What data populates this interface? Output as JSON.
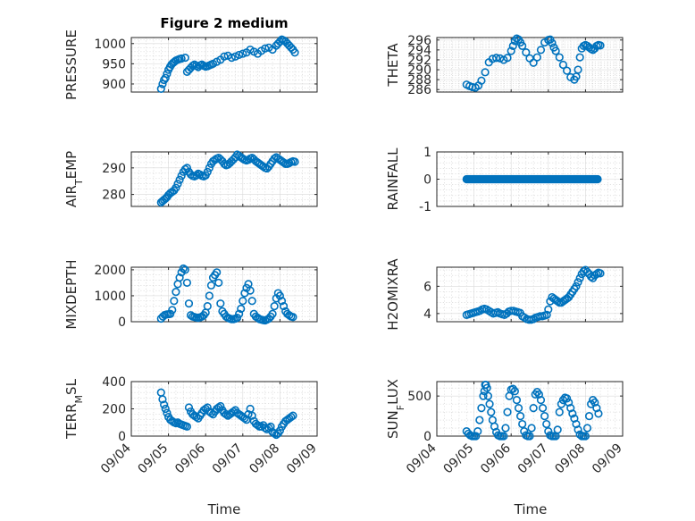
{
  "figure": {
    "title": "Figure 2 medium",
    "marker_color": "#0072BD",
    "xlabel": "Time",
    "date_ticks": [
      "09/04",
      "09/05",
      "09/06",
      "09/07",
      "09/08",
      "09/09"
    ]
  },
  "chart_data": [
    {
      "type": "scatter",
      "ylabel": "PRESSURE",
      "xlim": [
        0,
        5
      ],
      "ylim": [
        880,
        1015
      ],
      "yticks": [
        900,
        950,
        1000
      ],
      "yticklabels": [
        "900",
        "950",
        "1000"
      ],
      "x": [
        0.8,
        0.84,
        0.88,
        0.92,
        0.96,
        1.0,
        1.04,
        1.08,
        1.12,
        1.16,
        1.2,
        1.25,
        1.3,
        1.35,
        1.45,
        1.5,
        1.55,
        1.6,
        1.65,
        1.7,
        1.75,
        1.8,
        1.85,
        1.9,
        1.95,
        2.0,
        2.05,
        2.1,
        2.15,
        2.2,
        2.3,
        2.4,
        2.5,
        2.6,
        2.7,
        2.8,
        2.9,
        3.0,
        3.1,
        3.2,
        3.3,
        3.4,
        3.5,
        3.6,
        3.7,
        3.8,
        3.9,
        3.95,
        4.0,
        4.05,
        4.1,
        4.15,
        4.2,
        4.25,
        4.3,
        4.35,
        4.4
      ],
      "y": [
        888,
        900,
        910,
        915,
        925,
        935,
        942,
        948,
        952,
        955,
        958,
        960,
        962,
        963,
        965,
        930,
        935,
        940,
        945,
        948,
        945,
        942,
        946,
        948,
        945,
        943,
        944,
        946,
        948,
        950,
        955,
        960,
        968,
        970,
        965,
        968,
        972,
        975,
        978,
        985,
        980,
        975,
        982,
        988,
        990,
        985,
        995,
        1000,
        1005,
        1010,
        1008,
        1005,
        1000,
        995,
        990,
        985,
        978
      ]
    },
    {
      "type": "scatter",
      "ylabel": "THETA",
      "xlim": [
        0,
        5
      ],
      "ylim": [
        285.5,
        296.5
      ],
      "yticks": [
        286,
        288,
        290,
        292,
        294,
        296
      ],
      "yticklabels": [
        "286",
        "288",
        "290",
        "292",
        "294",
        "296"
      ],
      "x": [
        0.8,
        0.88,
        0.96,
        1.04,
        1.12,
        1.2,
        1.3,
        1.4,
        1.5,
        1.6,
        1.7,
        1.8,
        1.9,
        2.0,
        2.05,
        2.1,
        2.15,
        2.2,
        2.25,
        2.3,
        2.4,
        2.5,
        2.6,
        2.7,
        2.8,
        2.9,
        3.0,
        3.05,
        3.1,
        3.15,
        3.2,
        3.3,
        3.4,
        3.5,
        3.6,
        3.7,
        3.75,
        3.8,
        3.85,
        3.9,
        3.95,
        4.0,
        4.05,
        4.1,
        4.15,
        4.2,
        4.25,
        4.3,
        4.35,
        4.4
      ],
      "y": [
        287.0,
        286.7,
        286.5,
        286.4,
        286.8,
        287.8,
        289.5,
        291.5,
        292.2,
        292.4,
        292.3,
        292.0,
        292.4,
        293.8,
        294.8,
        295.8,
        296.3,
        296.1,
        295.5,
        294.8,
        293.5,
        292.3,
        291.4,
        292.5,
        294.0,
        295.5,
        296.0,
        296.1,
        295.4,
        294.5,
        293.8,
        292.5,
        291.0,
        289.8,
        288.5,
        288.0,
        288.6,
        290.0,
        292.5,
        294.3,
        294.8,
        295.0,
        294.8,
        294.5,
        294.2,
        294.0,
        294.3,
        294.8,
        295.0,
        294.9
      ]
    },
    {
      "type": "scatter",
      "ylabel": "AIR_TEMP",
      "xlim": [
        0,
        5
      ],
      "ylim": [
        275.5,
        296
      ],
      "yticks": [
        280,
        290
      ],
      "yticklabels": [
        "280",
        "290"
      ],
      "x": [
        0.8,
        0.84,
        0.88,
        0.92,
        0.96,
        1.0,
        1.05,
        1.1,
        1.15,
        1.2,
        1.25,
        1.3,
        1.35,
        1.4,
        1.45,
        1.5,
        1.55,
        1.6,
        1.65,
        1.7,
        1.75,
        1.8,
        1.85,
        1.9,
        1.95,
        2.0,
        2.05,
        2.1,
        2.15,
        2.2,
        2.25,
        2.3,
        2.35,
        2.4,
        2.45,
        2.5,
        2.55,
        2.6,
        2.65,
        2.7,
        2.75,
        2.8,
        2.85,
        2.9,
        2.95,
        3.0,
        3.05,
        3.1,
        3.15,
        3.2,
        3.25,
        3.3,
        3.35,
        3.4,
        3.45,
        3.5,
        3.55,
        3.6,
        3.65,
        3.7,
        3.75,
        3.8,
        3.85,
        3.9,
        3.95,
        4.0,
        4.05,
        4.1,
        4.15,
        4.2,
        4.25,
        4.3,
        4.35,
        4.4
      ],
      "y": [
        277.0,
        277.5,
        278.0,
        278.5,
        279.0,
        279.8,
        280.5,
        281.0,
        281.5,
        282.5,
        284.0,
        285.5,
        287.0,
        288.5,
        289.5,
        290.0,
        288.5,
        287.5,
        287.0,
        286.8,
        287.2,
        287.8,
        287.5,
        287.0,
        286.8,
        287.2,
        288.5,
        290.0,
        291.5,
        292.5,
        293.0,
        293.5,
        293.8,
        293.2,
        292.5,
        291.5,
        291.0,
        291.2,
        291.8,
        292.5,
        293.2,
        294.0,
        295.0,
        294.5,
        294.0,
        293.5,
        293.0,
        292.8,
        293.0,
        293.5,
        293.8,
        293.2,
        292.5,
        292.0,
        291.5,
        291.0,
        290.5,
        290.0,
        289.8,
        290.5,
        291.5,
        292.5,
        293.5,
        294.0,
        293.5,
        293.0,
        292.5,
        292.0,
        291.5,
        291.5,
        291.8,
        292.2,
        292.5,
        292.3
      ]
    },
    {
      "type": "scatter",
      "ylabel": "RAINFALL",
      "xlim": [
        0,
        5
      ],
      "ylim": [
        -1,
        1
      ],
      "yticks": [
        -1,
        0,
        1
      ],
      "yticklabels": [
        "-1",
        "0",
        "1"
      ],
      "x_start": 0.8,
      "x_end": 4.35,
      "x_step": 0.028,
      "constant_value": 0
    },
    {
      "type": "scatter",
      "ylabel": "MIXDEPTH",
      "xlim": [
        0,
        5
      ],
      "ylim": [
        0,
        2100
      ],
      "yticks": [
        0,
        1000,
        2000
      ],
      "yticklabels": [
        "0",
        "1000",
        "2000"
      ],
      "x": [
        0.8,
        0.85,
        0.9,
        0.95,
        1.0,
        1.05,
        1.1,
        1.15,
        1.2,
        1.25,
        1.3,
        1.35,
        1.4,
        1.45,
        1.5,
        1.55,
        1.6,
        1.65,
        1.7,
        1.75,
        1.8,
        1.85,
        1.9,
        1.95,
        2.0,
        2.05,
        2.1,
        2.15,
        2.2,
        2.25,
        2.3,
        2.35,
        2.4,
        2.45,
        2.5,
        2.55,
        2.6,
        2.65,
        2.7,
        2.75,
        2.8,
        2.85,
        2.9,
        2.95,
        3.0,
        3.05,
        3.1,
        3.15,
        3.2,
        3.25,
        3.3,
        3.35,
        3.4,
        3.45,
        3.5,
        3.55,
        3.6,
        3.65,
        3.7,
        3.75,
        3.8,
        3.85,
        3.9,
        3.95,
        4.0,
        4.05,
        4.1,
        4.15,
        4.2,
        4.25,
        4.3,
        4.35
      ],
      "y": [
        120,
        200,
        260,
        280,
        290,
        300,
        450,
        800,
        1150,
        1450,
        1700,
        1900,
        2050,
        2000,
        1500,
        700,
        250,
        200,
        180,
        160,
        150,
        170,
        200,
        250,
        350,
        600,
        1000,
        1400,
        1700,
        1800,
        1900,
        1500,
        700,
        400,
        300,
        200,
        150,
        120,
        100,
        100,
        120,
        150,
        300,
        500,
        800,
        1100,
        1300,
        1450,
        1200,
        800,
        300,
        200,
        150,
        100,
        80,
        60,
        50,
        80,
        120,
        200,
        300,
        600,
        900,
        1100,
        1000,
        800,
        600,
        400,
        300,
        250,
        200,
        180
      ]
    },
    {
      "type": "scatter",
      "ylabel": "H2OMIXRA",
      "xlim": [
        0,
        5
      ],
      "ylim": [
        3.4,
        7.4
      ],
      "yticks": [
        4,
        6
      ],
      "yticklabels": [
        "4",
        "6"
      ],
      "x": [
        0.8,
        0.86,
        0.92,
        0.98,
        1.04,
        1.1,
        1.16,
        1.22,
        1.28,
        1.34,
        1.4,
        1.46,
        1.52,
        1.58,
        1.64,
        1.7,
        1.76,
        1.82,
        1.88,
        1.94,
        2.0,
        2.06,
        2.12,
        2.18,
        2.24,
        2.3,
        2.36,
        2.42,
        2.48,
        2.54,
        2.6,
        2.66,
        2.72,
        2.78,
        2.84,
        2.9,
        2.96,
        3.0,
        3.05,
        3.1,
        3.15,
        3.2,
        3.25,
        3.3,
        3.35,
        3.4,
        3.45,
        3.5,
        3.55,
        3.6,
        3.65,
        3.7,
        3.75,
        3.8,
        3.85,
        3.9,
        3.95,
        4.0,
        4.05,
        4.1,
        4.15,
        4.2,
        4.25,
        4.3,
        4.35,
        4.4
      ],
      "y": [
        3.9,
        3.95,
        4.0,
        4.05,
        4.1,
        4.15,
        4.2,
        4.3,
        4.35,
        4.3,
        4.2,
        4.1,
        4.0,
        4.05,
        4.1,
        4.0,
        3.95,
        3.9,
        4.0,
        4.15,
        4.2,
        4.2,
        4.15,
        4.1,
        4.05,
        3.8,
        3.7,
        3.6,
        3.55,
        3.55,
        3.6,
        3.7,
        3.75,
        3.8,
        3.8,
        3.85,
        3.9,
        4.3,
        4.9,
        5.2,
        5.1,
        5.0,
        4.9,
        4.8,
        4.8,
        4.9,
        5.0,
        5.1,
        5.2,
        5.4,
        5.6,
        5.8,
        6.0,
        6.3,
        6.6,
        6.9,
        7.1,
        7.2,
        7.05,
        6.9,
        6.7,
        6.6,
        6.8,
        6.9,
        7.0,
        6.95
      ]
    },
    {
      "type": "scatter",
      "ylabel": "TERR_MSL",
      "xlim": [
        0,
        5
      ],
      "ylim": [
        0,
        400
      ],
      "yticks": [
        0,
        200,
        400
      ],
      "yticklabels": [
        "0",
        "200",
        "400"
      ],
      "x": [
        0.8,
        0.84,
        0.88,
        0.92,
        0.96,
        1.0,
        1.05,
        1.1,
        1.15,
        1.2,
        1.25,
        1.3,
        1.35,
        1.4,
        1.45,
        1.5,
        1.55,
        1.6,
        1.65,
        1.7,
        1.75,
        1.8,
        1.85,
        1.9,
        1.95,
        2.0,
        2.05,
        2.1,
        2.15,
        2.2,
        2.25,
        2.3,
        2.35,
        2.4,
        2.45,
        2.5,
        2.55,
        2.6,
        2.65,
        2.7,
        2.75,
        2.8,
        2.85,
        2.9,
        2.95,
        3.0,
        3.05,
        3.1,
        3.15,
        3.2,
        3.25,
        3.3,
        3.35,
        3.4,
        3.45,
        3.5,
        3.55,
        3.6,
        3.65,
        3.7,
        3.75,
        3.8,
        3.85,
        3.9,
        3.95,
        4.0,
        4.05,
        4.1,
        4.15,
        4.2,
        4.25,
        4.3,
        4.35
      ],
      "y": [
        320,
        270,
        230,
        200,
        170,
        140,
        120,
        110,
        100,
        95,
        100,
        90,
        85,
        80,
        75,
        70,
        210,
        180,
        160,
        150,
        140,
        130,
        150,
        170,
        190,
        200,
        210,
        180,
        170,
        160,
        180,
        200,
        210,
        220,
        190,
        170,
        160,
        150,
        160,
        170,
        180,
        190,
        170,
        160,
        150,
        140,
        130,
        120,
        160,
        200,
        150,
        110,
        90,
        80,
        70,
        70,
        80,
        60,
        50,
        60,
        70,
        30,
        20,
        10,
        20,
        40,
        70,
        90,
        110,
        120,
        130,
        140,
        150
      ]
    },
    {
      "type": "scatter",
      "ylabel": "SUN_FLUX",
      "xlim": [
        0,
        5
      ],
      "ylim": [
        0,
        680
      ],
      "yticks": [
        0,
        500
      ],
      "yticklabels": [
        "0",
        "500"
      ],
      "x": [
        0.8,
        0.85,
        0.9,
        0.95,
        1.0,
        1.05,
        1.1,
        1.15,
        1.2,
        1.25,
        1.28,
        1.3,
        1.32,
        1.35,
        1.38,
        1.42,
        1.46,
        1.5,
        1.55,
        1.6,
        1.65,
        1.7,
        1.75,
        1.8,
        1.85,
        1.9,
        1.95,
        2.0,
        2.05,
        2.1,
        2.15,
        2.2,
        2.25,
        2.3,
        2.35,
        2.4,
        2.45,
        2.5,
        2.55,
        2.6,
        2.65,
        2.7,
        2.75,
        2.8,
        2.85,
        2.9,
        2.95,
        3.0,
        3.05,
        3.1,
        3.15,
        3.2,
        3.25,
        3.3,
        3.35,
        3.4,
        3.45,
        3.5,
        3.55,
        3.6,
        3.65,
        3.7,
        3.75,
        3.8,
        3.85,
        3.9,
        3.95,
        4.0,
        4.05,
        4.1,
        4.15,
        4.2,
        4.25,
        4.3,
        4.35
      ],
      "y": [
        60,
        30,
        10,
        0,
        0,
        0,
        60,
        200,
        350,
        500,
        560,
        640,
        640,
        600,
        500,
        400,
        300,
        200,
        120,
        50,
        10,
        0,
        0,
        0,
        100,
        300,
        500,
        580,
        590,
        560,
        450,
        350,
        250,
        150,
        60,
        10,
        0,
        0,
        100,
        350,
        520,
        550,
        520,
        450,
        350,
        250,
        150,
        60,
        10,
        0,
        0,
        0,
        80,
        300,
        400,
        450,
        480,
        470,
        420,
        350,
        280,
        220,
        150,
        80,
        20,
        0,
        0,
        0,
        100,
        250,
        400,
        450,
        420,
        350,
        280
      ]
    }
  ]
}
